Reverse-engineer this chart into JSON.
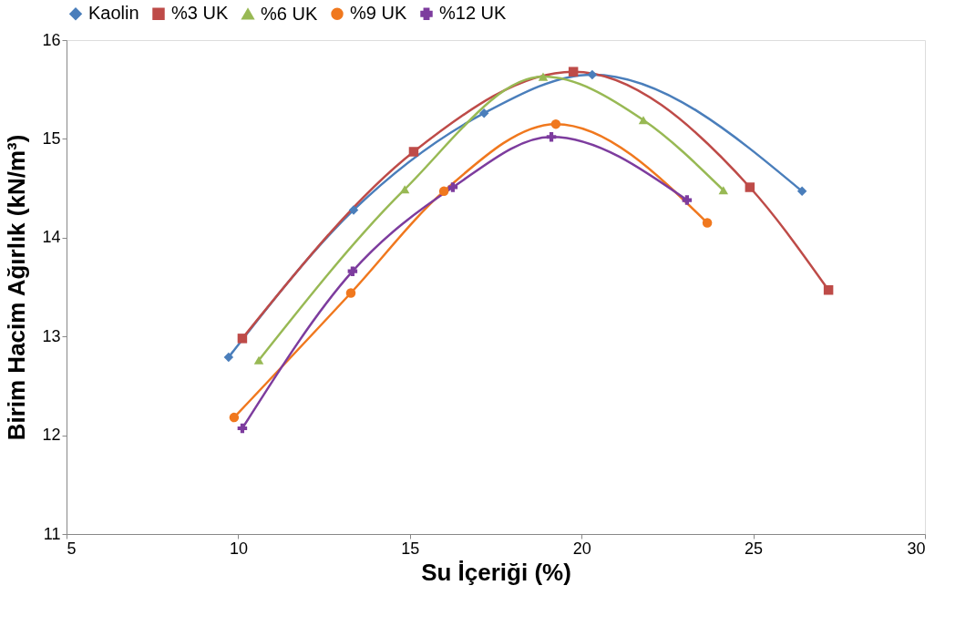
{
  "chart_data": {
    "type": "line",
    "xlabel": "Su İçeriği (%)",
    "ylabel": "Birim Hacim Ağırlık  (kN/m³)",
    "xlim": [
      5,
      30
    ],
    "xticks": [
      5,
      10,
      15,
      20,
      25,
      30
    ],
    "ylim": [
      11,
      16
    ],
    "yticks": [
      11,
      12,
      13,
      14,
      15,
      16
    ],
    "grid": false,
    "legend": "top",
    "line_style": "solid",
    "series": [
      {
        "name": "Kaolin",
        "color": "#4a7ebb",
        "marker": "diamond",
        "x": [
          9.72,
          13.36,
          17.16,
          20.31,
          26.42
        ],
        "values": [
          12.79,
          14.28,
          15.26,
          15.65,
          14.47
        ]
      },
      {
        "name": "%3 UK",
        "color": "#be4b48",
        "marker": "square",
        "x": [
          10.12,
          15.11,
          19.76,
          24.9,
          27.19
        ],
        "values": [
          12.98,
          14.87,
          15.68,
          14.51,
          13.47
        ]
      },
      {
        "name": "%6 UK",
        "color": "#98b954",
        "marker": "triangle",
        "x": [
          10.6,
          14.85,
          18.88,
          21.8,
          24.13
        ],
        "values": [
          12.76,
          14.49,
          15.63,
          15.19,
          14.48
        ]
      },
      {
        "name": "%9 UK",
        "color": "#f0781e",
        "marker": "circle",
        "x": [
          9.88,
          13.28,
          15.99,
          19.25,
          23.66
        ],
        "values": [
          12.18,
          13.44,
          14.47,
          15.15,
          14.15
        ]
      },
      {
        "name": "%12 UK",
        "color": "#7d3c9e",
        "marker": "cross",
        "x": [
          10.12,
          13.33,
          16.25,
          19.12,
          23.07
        ],
        "values": [
          12.07,
          13.66,
          14.51,
          15.02,
          14.38
        ]
      }
    ]
  }
}
